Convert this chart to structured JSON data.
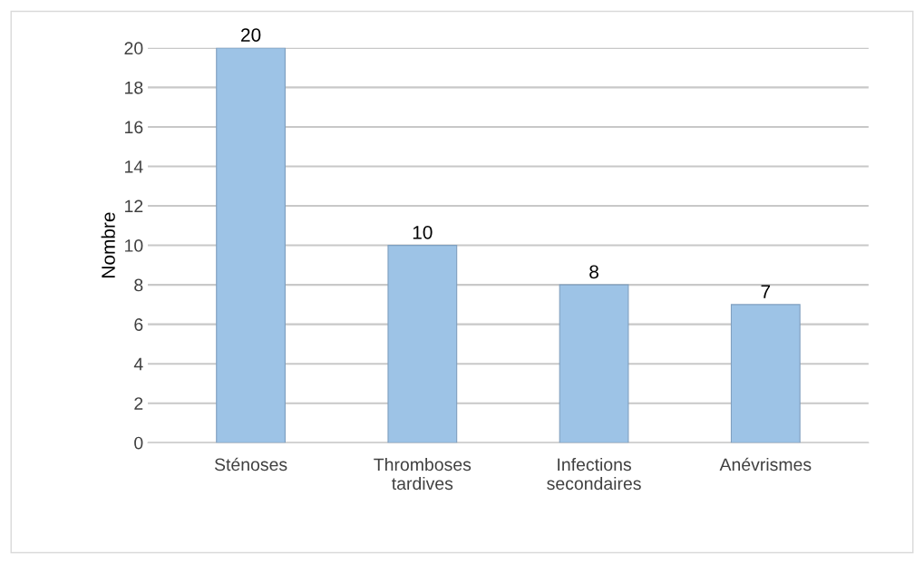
{
  "chart_data": {
    "type": "bar",
    "categories": [
      "Sténoses",
      "Thromboses\ntardives",
      "Infections\nsecondaires",
      "Anévrismes"
    ],
    "values": [
      20,
      10,
      8,
      7
    ],
    "color": "#9dc3e6",
    "ylabel": "Nombre",
    "ylim": [
      0,
      20
    ],
    "yticks": [
      0,
      2,
      4,
      6,
      8,
      10,
      12,
      14,
      16,
      18,
      20
    ],
    "grid": "y",
    "data_labels": true
  }
}
